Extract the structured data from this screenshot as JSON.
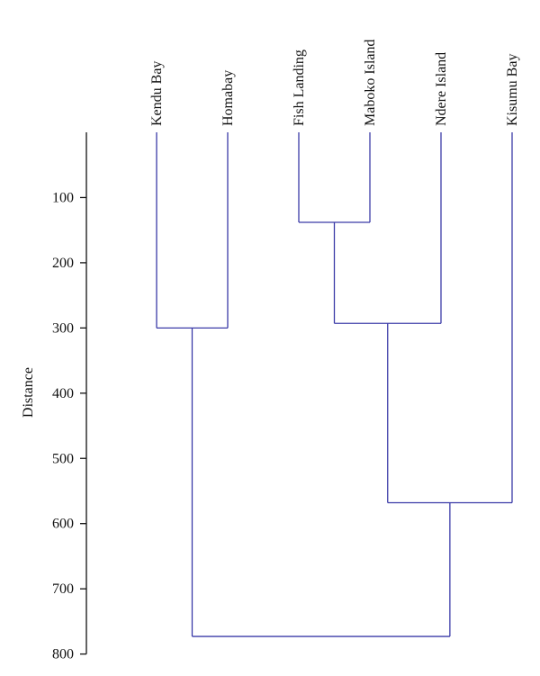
{
  "chart_data": {
    "type": "dendrogram",
    "title": "",
    "ylabel": "Distance",
    "xlabel": "",
    "ylim": [
      0,
      800
    ],
    "y_inverted": true,
    "yticks": [
      100,
      200,
      300,
      400,
      500,
      600,
      700,
      800
    ],
    "leaves": [
      "Kendu Bay",
      "Homabay",
      "Fish Landing",
      "Maboko Island",
      "Ndere Island",
      "Kisumu Bay"
    ],
    "merges": [
      {
        "left": "Fish Landing",
        "right": "Maboko Island",
        "height": 138
      },
      {
        "left": "Fish Landing + Maboko Island",
        "right": "Ndere Island",
        "height": 293
      },
      {
        "left": "Kendu Bay",
        "right": "Homabay",
        "height": 300
      },
      {
        "left": "Fish Landing + Maboko Island + Ndere Island",
        "right": "Kisumu Bay",
        "height": 568
      },
      {
        "left": "Kendu Bay + Homabay",
        "right": "Fish Landing + Maboko Island + Ndere Island + Kisumu Bay",
        "height": 773
      }
    ],
    "line_color": "#3b3ba8",
    "axis_color": "#111111"
  }
}
